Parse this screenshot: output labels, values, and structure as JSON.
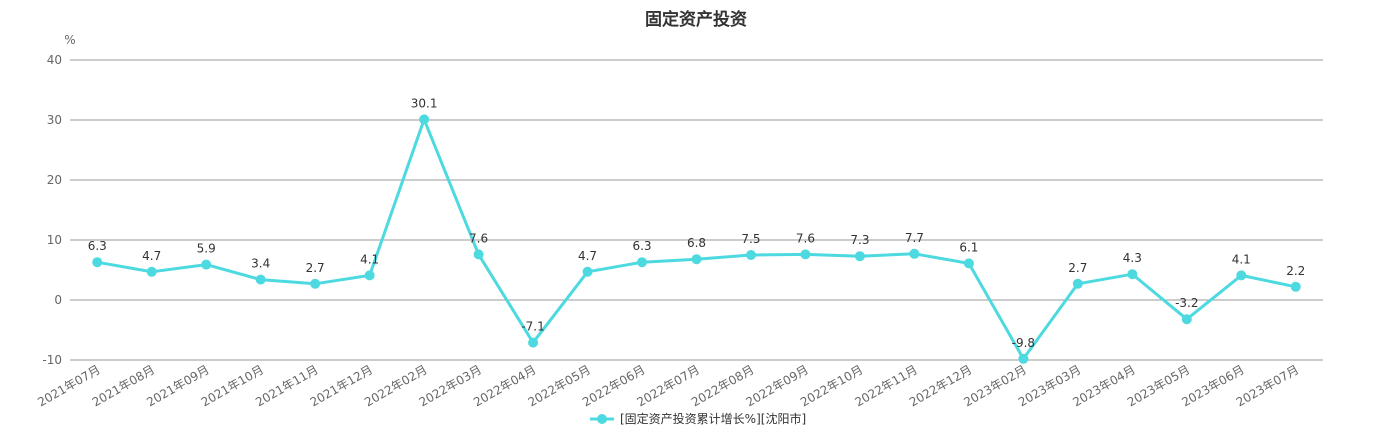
{
  "chart_data": {
    "type": "line",
    "title": "固定资产投资",
    "ylabel": "%",
    "xlabel": "",
    "ylim": [
      -10,
      40
    ],
    "yticks": [
      -10,
      0,
      10,
      20,
      30,
      40
    ],
    "grid": true,
    "legend_position": "bottom",
    "categories": [
      "2021年07月",
      "2021年08月",
      "2021年09月",
      "2021年10月",
      "2021年11月",
      "2021年12月",
      "2022年02月",
      "2022年03月",
      "2022年04月",
      "2022年05月",
      "2022年06月",
      "2022年07月",
      "2022年08月",
      "2022年09月",
      "2022年10月",
      "2022年11月",
      "2022年12月",
      "2023年02月",
      "2023年03月",
      "2023年04月",
      "2023年05月",
      "2023年06月",
      "2023年07月"
    ],
    "series": [
      {
        "name": "[固定资产投资累计增长%][沈阳市]",
        "color": "#4dd9e0",
        "values": [
          6.3,
          4.7,
          5.9,
          3.4,
          2.7,
          4.1,
          30.1,
          7.6,
          -7.1,
          4.7,
          6.3,
          6.8,
          7.5,
          7.6,
          7.3,
          7.7,
          6.1,
          -9.8,
          2.7,
          4.3,
          -3.2,
          4.1,
          2.2
        ]
      }
    ]
  }
}
